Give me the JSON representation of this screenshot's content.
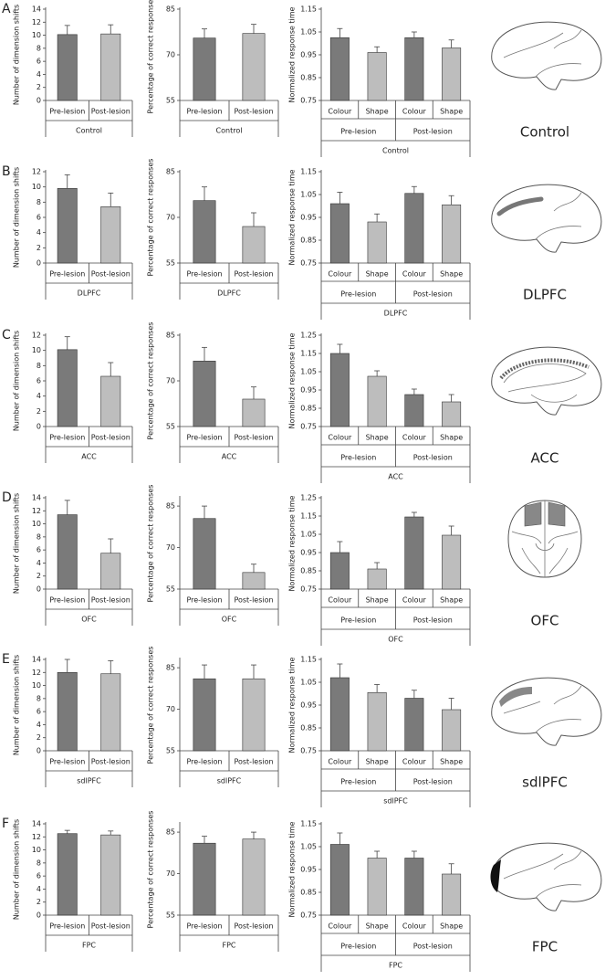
{
  "panels": [
    {
      "letter": "A",
      "region": "Control"
    },
    {
      "letter": "B",
      "region": "DLPFC"
    },
    {
      "letter": "C",
      "region": "ACC"
    },
    {
      "letter": "D",
      "region": "OFC"
    },
    {
      "letter": "E",
      "region": "sdlPFC"
    },
    {
      "letter": "F",
      "region": "FPC"
    }
  ],
  "chart_data": [
    {
      "type": "bar",
      "ylabel": "Number of dimension shifts",
      "xlabel": "Control",
      "categories": [
        "Pre-lesion",
        "Post-lesion"
      ],
      "values": [
        10.1,
        10.2
      ],
      "errors": [
        1.4,
        1.4
      ],
      "colors": [
        "#7a7a7a",
        "#bdbdbd"
      ],
      "ylim": [
        0,
        14
      ],
      "yticks": [
        0,
        2,
        4,
        6,
        8,
        10,
        12,
        14
      ]
    },
    {
      "type": "bar",
      "ylabel": "Percentage of correct responses",
      "xlabel": "Control",
      "categories": [
        "Pre-lesion",
        "Post-lesion"
      ],
      "values": [
        75.5,
        77
      ],
      "errors": [
        3,
        3
      ],
      "colors": [
        "#7a7a7a",
        "#bdbdbd"
      ],
      "ylim": [
        55,
        85
      ],
      "yticks": [
        55,
        70,
        85
      ]
    },
    {
      "type": "bar",
      "ylabel": "Normalized response time",
      "xlabel": "Control",
      "categories": [
        "Colour",
        "Shape",
        "Colour",
        "Shape"
      ],
      "groups": [
        "Pre-lesion",
        "Post-lesion"
      ],
      "values": [
        1.025,
        0.96,
        1.025,
        0.98
      ],
      "errors": [
        0.04,
        0.025,
        0.025,
        0.035
      ],
      "colors": [
        "#7a7a7a",
        "#bdbdbd",
        "#7a7a7a",
        "#bdbdbd"
      ],
      "ylim": [
        0.75,
        1.15
      ],
      "yticks": [
        0.75,
        0.85,
        0.95,
        1.05,
        1.15
      ]
    },
    {
      "type": "bar",
      "ylabel": "Number of dimension shifts",
      "xlabel": "DLPFC",
      "categories": [
        "Pre-lesion",
        "Post-lesion"
      ],
      "values": [
        9.8,
        7.4
      ],
      "errors": [
        1.8,
        1.8
      ],
      "colors": [
        "#7a7a7a",
        "#bdbdbd"
      ],
      "ylim": [
        0,
        12
      ],
      "yticks": [
        0,
        2,
        4,
        6,
        8,
        10,
        12
      ]
    },
    {
      "type": "bar",
      "ylabel": "Percentage of correct responses",
      "xlabel": "DLPFC",
      "categories": [
        "Pre-lesion",
        "Post-lesion"
      ],
      "values": [
        75.5,
        67
      ],
      "errors": [
        4.5,
        4.5
      ],
      "colors": [
        "#7a7a7a",
        "#bdbdbd"
      ],
      "ylim": [
        55,
        85
      ],
      "yticks": [
        55,
        70,
        85
      ]
    },
    {
      "type": "bar",
      "ylabel": "Normalized response time",
      "xlabel": "DLPFC",
      "categories": [
        "Colour",
        "Shape",
        "Colour",
        "Shape"
      ],
      "groups": [
        "Pre-lesion",
        "Post-lesion"
      ],
      "values": [
        1.01,
        0.93,
        1.055,
        1.005
      ],
      "errors": [
        0.05,
        0.035,
        0.03,
        0.04
      ],
      "colors": [
        "#7a7a7a",
        "#bdbdbd",
        "#7a7a7a",
        "#bdbdbd"
      ],
      "ylim": [
        0.75,
        1.15
      ],
      "yticks": [
        0.75,
        0.85,
        0.95,
        1.05,
        1.15
      ]
    },
    {
      "type": "bar",
      "ylabel": "Number of dimension shifts",
      "xlabel": "ACC",
      "categories": [
        "Pre-lesion",
        "Post-lesion"
      ],
      "values": [
        10.1,
        6.6
      ],
      "errors": [
        1.7,
        1.8
      ],
      "colors": [
        "#7a7a7a",
        "#bdbdbd"
      ],
      "ylim": [
        0,
        12
      ],
      "yticks": [
        0,
        2,
        4,
        6,
        8,
        10,
        12
      ]
    },
    {
      "type": "bar",
      "ylabel": "Percentage of correct responses",
      "xlabel": "ACC",
      "categories": [
        "Pre-lesion",
        "Post-lesion"
      ],
      "values": [
        76.5,
        64
      ],
      "errors": [
        4.5,
        4
      ],
      "colors": [
        "#7a7a7a",
        "#bdbdbd"
      ],
      "ylim": [
        55,
        85
      ],
      "yticks": [
        55,
        70,
        85
      ]
    },
    {
      "type": "bar",
      "ylabel": "Normalized response time",
      "xlabel": "ACC",
      "categories": [
        "Colour",
        "Shape",
        "Colour",
        "Shape"
      ],
      "groups": [
        "Pre-lesion",
        "Post-lesion"
      ],
      "values": [
        1.15,
        1.025,
        0.925,
        0.885
      ],
      "errors": [
        0.05,
        0.03,
        0.03,
        0.04
      ],
      "colors": [
        "#7a7a7a",
        "#bdbdbd",
        "#7a7a7a",
        "#bdbdbd"
      ],
      "ylim": [
        0.75,
        1.25
      ],
      "yticks": [
        0.75,
        0.85,
        0.95,
        1.05,
        1.15,
        1.25
      ]
    },
    {
      "type": "bar",
      "ylabel": "Number of dimension shifts",
      "xlabel": "OFC",
      "categories": [
        "Pre-lesion",
        "Post-lesion"
      ],
      "values": [
        11.4,
        5.5
      ],
      "errors": [
        2.2,
        2.2
      ],
      "colors": [
        "#7a7a7a",
        "#bdbdbd"
      ],
      "ylim": [
        0,
        14
      ],
      "yticks": [
        0,
        2,
        4,
        6,
        8,
        10,
        12,
        14
      ]
    },
    {
      "type": "bar",
      "ylabel": "Percentage of correct responses",
      "xlabel": "OFC",
      "categories": [
        "Pre-lesion",
        "Post-lesion"
      ],
      "values": [
        80.5,
        61
      ],
      "errors": [
        4.5,
        3
      ],
      "colors": [
        "#7a7a7a",
        "#bdbdbd"
      ],
      "ylim": [
        55,
        88
      ],
      "yticks": [
        55,
        70,
        85
      ]
    },
    {
      "type": "bar",
      "ylabel": "Normalized response time",
      "xlabel": "OFC",
      "categories": [
        "Colour",
        "Shape",
        "Colour",
        "Shape"
      ],
      "groups": [
        "Pre-lesion",
        "Post-lesion"
      ],
      "values": [
        0.95,
        0.86,
        1.145,
        1.045
      ],
      "errors": [
        0.06,
        0.035,
        0.025,
        0.05
      ],
      "colors": [
        "#7a7a7a",
        "#bdbdbd",
        "#7a7a7a",
        "#bdbdbd"
      ],
      "ylim": [
        0.75,
        1.25
      ],
      "yticks": [
        0.75,
        0.85,
        0.95,
        1.05,
        1.15,
        1.25
      ]
    },
    {
      "type": "bar",
      "ylabel": "Number of dimension shifts",
      "xlabel": "sdlPFC",
      "categories": [
        "Pre-lesion",
        "Post-lesion"
      ],
      "values": [
        12,
        11.8
      ],
      "errors": [
        2,
        2
      ],
      "colors": [
        "#7a7a7a",
        "#bdbdbd"
      ],
      "ylim": [
        0,
        14
      ],
      "yticks": [
        0,
        2,
        4,
        6,
        8,
        10,
        12,
        14
      ]
    },
    {
      "type": "bar",
      "ylabel": "Percentage of correct responses",
      "xlabel": "sdlPFC",
      "categories": [
        "Pre-lesion",
        "Post-lesion"
      ],
      "values": [
        81,
        81
      ],
      "errors": [
        5,
        5
      ],
      "colors": [
        "#7a7a7a",
        "#bdbdbd"
      ],
      "ylim": [
        55,
        88
      ],
      "yticks": [
        55,
        70,
        85
      ]
    },
    {
      "type": "bar",
      "ylabel": "Normalized response time",
      "xlabel": "sdlPFC",
      "categories": [
        "Colour",
        "Shape",
        "Colour",
        "Shape"
      ],
      "groups": [
        "Pre-lesion",
        "Post-lesion"
      ],
      "values": [
        1.07,
        1.005,
        0.98,
        0.93
      ],
      "errors": [
        0.06,
        0.035,
        0.035,
        0.05
      ],
      "colors": [
        "#7a7a7a",
        "#bdbdbd",
        "#7a7a7a",
        "#bdbdbd"
      ],
      "ylim": [
        0.75,
        1.15
      ],
      "yticks": [
        0.75,
        0.85,
        0.95,
        1.05,
        1.15
      ]
    },
    {
      "type": "bar",
      "ylabel": "Number of dimension shifts",
      "xlabel": "FPC",
      "categories": [
        "Pre-lesion",
        "Post-lesion"
      ],
      "values": [
        12.5,
        12.3
      ],
      "errors": [
        0.5,
        0.6
      ],
      "colors": [
        "#7a7a7a",
        "#bdbdbd"
      ],
      "ylim": [
        0,
        14
      ],
      "yticks": [
        0,
        2,
        4,
        6,
        8,
        10,
        12,
        14
      ]
    },
    {
      "type": "bar",
      "ylabel": "Percentage of correct responses",
      "xlabel": "FPC",
      "categories": [
        "Pre-lesion",
        "Post-lesion"
      ],
      "values": [
        81,
        82.5
      ],
      "errors": [
        2.5,
        2.5
      ],
      "colors": [
        "#7a7a7a",
        "#bdbdbd"
      ],
      "ylim": [
        55,
        88
      ],
      "yticks": [
        55,
        70,
        85
      ]
    },
    {
      "type": "bar",
      "ylabel": "Normalized response time",
      "xlabel": "FPC",
      "categories": [
        "Colour",
        "Shape",
        "Colour",
        "Shape"
      ],
      "groups": [
        "Pre-lesion",
        "Post-lesion"
      ],
      "values": [
        1.06,
        1.0,
        1.0,
        0.93
      ],
      "errors": [
        0.05,
        0.03,
        0.03,
        0.045
      ],
      "colors": [
        "#7a7a7a",
        "#bdbdbd",
        "#7a7a7a",
        "#bdbdbd"
      ],
      "ylim": [
        0.75,
        1.15
      ],
      "yticks": [
        0.75,
        0.85,
        0.95,
        1.05,
        1.15
      ]
    }
  ]
}
